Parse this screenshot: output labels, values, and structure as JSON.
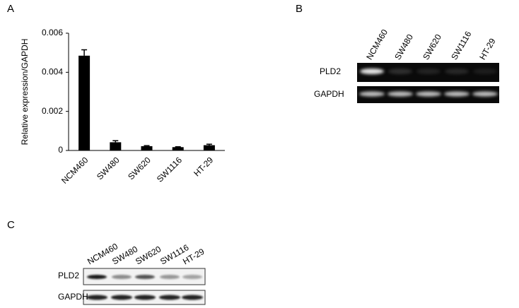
{
  "chart_data": {
    "type": "bar",
    "y_label": "Relative expression/GAPDH",
    "categories": [
      "NCM460",
      "SW480",
      "SW620",
      "SW1116",
      "HT-29"
    ],
    "values": [
      0.00485,
      0.00042,
      0.00022,
      0.00017,
      0.00027
    ],
    "errors": [
      0.0003,
      8e-05,
      3e-05,
      2e-05,
      5e-05
    ],
    "color": "#000000",
    "ylim": [
      0,
      0.006
    ],
    "yticks": [
      0,
      0.002,
      0.004,
      0.006
    ]
  },
  "panel_labels": [
    "A",
    "B",
    "C"
  ],
  "gel_b": {
    "lanes": [
      "NCM460",
      "SW480",
      "SW620",
      "SW1116",
      "HT-29"
    ],
    "rows": [
      "PLD2",
      "GAPDH"
    ]
  },
  "gel_c": {
    "lanes": [
      "NCM460",
      "SW480",
      "SW620",
      "SW1116",
      "HT-29"
    ],
    "rows": [
      "PLD2",
      "GAPDH"
    ]
  }
}
